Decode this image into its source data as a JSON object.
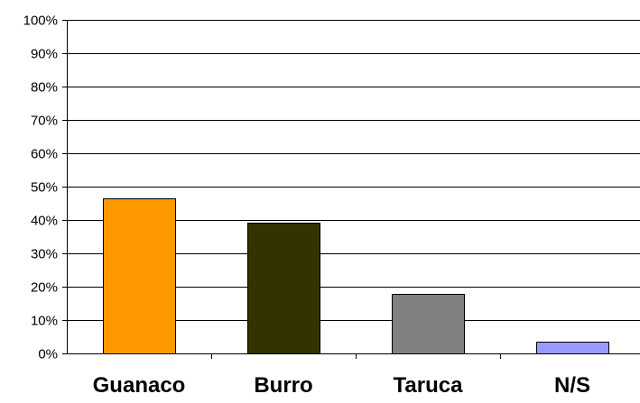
{
  "chart_data": {
    "type": "bar",
    "categories": [
      "Guanaco",
      "Burro",
      "Taruca",
      "N/S"
    ],
    "values": [
      46.4,
      39.3,
      17.9,
      3.4
    ],
    "colors": [
      "#FF9900",
      "#333300",
      "#808080",
      "#9999FF"
    ],
    "ylim": [
      0,
      100
    ],
    "yticks": [
      "0%",
      "10%",
      "20%",
      "30%",
      "40%",
      "50%",
      "60%",
      "70%",
      "80%",
      "90%",
      "100%"
    ],
    "grid": true,
    "legend": "none"
  }
}
